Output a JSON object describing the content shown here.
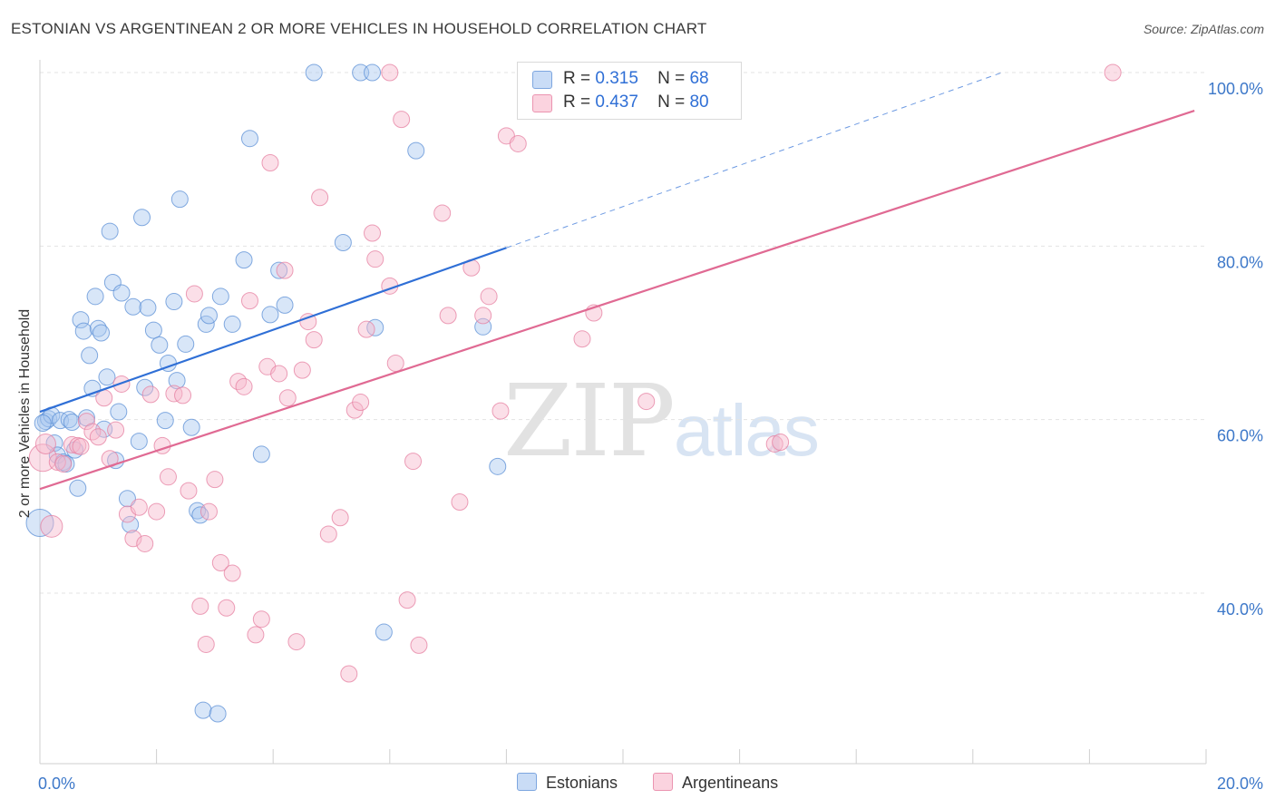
{
  "title": "ESTONIAN VS ARGENTINEAN 2 OR MORE VEHICLES IN HOUSEHOLD CORRELATION CHART",
  "source": "Source: ZipAtlas.com",
  "watermark": {
    "zip": "ZIP",
    "atlas": "atlas"
  },
  "legend_top": {
    "rows": [
      {
        "r_label": "R =",
        "r_value": "0.315",
        "n_label": "N =",
        "n_value": "68",
        "color": "#a8c8f0"
      },
      {
        "r_label": "R =",
        "r_value": "0.437",
        "n_label": "N =",
        "n_value": "80",
        "color": "#f6b8cb"
      }
    ]
  },
  "legend_bottom": [
    {
      "label": "Estonians",
      "color": "#a8c8f0"
    },
    {
      "label": "Argentineans",
      "color": "#f6b8cb"
    }
  ],
  "colors": {
    "estonian_fill": "#a8c8f0",
    "estonian_stroke": "#5b8fd6",
    "estonian_line": "#2f6fd6",
    "argentinean_fill": "#f6b8cb",
    "argentinean_stroke": "#e57fa0",
    "argentinean_line": "#e06a93",
    "tick_label": "#3d78c9",
    "grid": "#e3e3e3"
  },
  "chart_data": {
    "type": "scatter",
    "title": "ESTONIAN VS ARGENTINEAN 2 OR MORE VEHICLES IN HOUSEHOLD CORRELATION CHART",
    "xlabel": "",
    "ylabel": "2 or more Vehicles in Household",
    "xlim": [
      0,
      20
    ],
    "ylim": [
      20,
      102
    ],
    "x_tick_labels": [
      {
        "value": 0,
        "label": "0.0%"
      },
      {
        "value": 20,
        "label": "20.0%"
      }
    ],
    "y_tick_labels": [
      {
        "value": 40,
        "label": "40.0%"
      },
      {
        "value": 60,
        "label": "60.0%"
      },
      {
        "value": 80,
        "label": "80.0%"
      },
      {
        "value": 100,
        "label": "100.0%"
      }
    ],
    "y_grid": [
      40,
      60,
      80,
      100
    ],
    "x_minor_ticks": [
      0,
      2,
      4,
      6,
      8,
      10,
      12,
      14,
      16,
      18,
      20
    ],
    "grid": true,
    "legend_position": "top-center",
    "series": [
      {
        "name": "Estonians",
        "r": 0.315,
        "n": 68,
        "trend": {
          "x0": 0,
          "y0": 60.9,
          "x1": 8,
          "y1": 79.8,
          "dashed_to_x": 16.5,
          "dashed_to_y": 100
        },
        "points": [
          [
            0.0,
            48.1,
            14
          ],
          [
            0.1,
            59.8,
            8
          ],
          [
            0.15,
            60.1,
            8
          ],
          [
            0.2,
            60.5,
            8
          ],
          [
            0.25,
            57.3,
            8
          ],
          [
            0.3,
            55.9,
            8
          ],
          [
            0.35,
            59.9,
            8
          ],
          [
            0.4,
            55.1,
            8
          ],
          [
            0.45,
            54.9,
            8
          ],
          [
            0.5,
            60.0,
            8
          ],
          [
            0.55,
            59.7,
            8
          ],
          [
            0.6,
            56.5,
            8
          ],
          [
            0.65,
            52.1,
            8
          ],
          [
            0.7,
            71.5,
            8
          ],
          [
            0.75,
            70.2,
            8
          ],
          [
            0.8,
            60.2,
            8
          ],
          [
            0.85,
            67.4,
            8
          ],
          [
            0.9,
            63.6,
            8
          ],
          [
            0.95,
            74.2,
            8
          ],
          [
            1.0,
            70.5,
            8
          ],
          [
            1.05,
            70.0,
            8
          ],
          [
            1.1,
            58.9,
            8
          ],
          [
            1.15,
            64.9,
            8
          ],
          [
            1.2,
            81.7,
            8
          ],
          [
            1.25,
            75.8,
            8
          ],
          [
            1.3,
            55.3,
            8
          ],
          [
            1.35,
            60.9,
            8
          ],
          [
            1.4,
            74.6,
            8
          ],
          [
            1.5,
            50.9,
            8
          ],
          [
            1.55,
            47.9,
            8
          ],
          [
            1.6,
            73.0,
            8
          ],
          [
            1.7,
            57.5,
            8
          ],
          [
            1.75,
            83.3,
            8
          ],
          [
            1.8,
            63.7,
            8
          ],
          [
            1.85,
            72.9,
            8
          ],
          [
            1.95,
            70.3,
            8
          ],
          [
            2.05,
            68.6,
            8
          ],
          [
            2.15,
            59.9,
            8
          ],
          [
            2.2,
            66.5,
            8
          ],
          [
            2.3,
            73.6,
            8
          ],
          [
            2.35,
            64.5,
            8
          ],
          [
            2.4,
            85.4,
            8
          ],
          [
            2.5,
            68.7,
            8
          ],
          [
            2.6,
            59.1,
            8
          ],
          [
            2.7,
            49.5,
            8
          ],
          [
            2.75,
            49.0,
            8
          ],
          [
            2.8,
            26.5,
            8
          ],
          [
            2.85,
            71.0,
            8
          ],
          [
            2.9,
            72.0,
            8
          ],
          [
            3.05,
            26.1,
            8
          ],
          [
            3.1,
            74.2,
            8
          ],
          [
            3.3,
            71.0,
            8
          ],
          [
            3.5,
            78.4,
            8
          ],
          [
            3.6,
            92.4,
            8
          ],
          [
            3.8,
            56.0,
            8
          ],
          [
            3.95,
            72.1,
            8
          ],
          [
            4.1,
            77.2,
            8
          ],
          [
            4.2,
            73.2,
            8
          ],
          [
            4.7,
            100.0,
            8
          ],
          [
            5.2,
            80.4,
            8
          ],
          [
            5.5,
            100.0,
            8
          ],
          [
            5.7,
            100.0,
            8
          ],
          [
            5.75,
            70.6,
            8
          ],
          [
            5.9,
            35.5,
            8
          ],
          [
            6.45,
            91.0,
            8
          ],
          [
            7.6,
            70.7,
            8
          ],
          [
            7.85,
            54.6,
            8
          ],
          [
            0.05,
            59.6,
            8
          ]
        ]
      },
      {
        "name": "Argentineans",
        "r": 0.437,
        "n": 80,
        "trend": {
          "x0": 0,
          "y0": 52.0,
          "x1": 19.8,
          "y1": 95.6
        },
        "points": [
          [
            0.05,
            55.6,
            14
          ],
          [
            0.1,
            57.2,
            10
          ],
          [
            0.2,
            47.7,
            11
          ],
          [
            0.3,
            55.1,
            8
          ],
          [
            0.4,
            54.9,
            8
          ],
          [
            0.55,
            57.1,
            8
          ],
          [
            0.65,
            57.0,
            8
          ],
          [
            0.7,
            56.9,
            8
          ],
          [
            0.8,
            59.8,
            8
          ],
          [
            0.9,
            58.6,
            8
          ],
          [
            1.0,
            58.0,
            8
          ],
          [
            1.1,
            62.5,
            8
          ],
          [
            1.2,
            55.5,
            8
          ],
          [
            1.3,
            58.8,
            8
          ],
          [
            1.4,
            64.1,
            8
          ],
          [
            1.5,
            49.1,
            8
          ],
          [
            1.6,
            46.3,
            8
          ],
          [
            1.7,
            49.9,
            8
          ],
          [
            1.8,
            45.7,
            8
          ],
          [
            1.9,
            62.9,
            8
          ],
          [
            2.0,
            49.4,
            8
          ],
          [
            2.1,
            57.0,
            8
          ],
          [
            2.2,
            53.4,
            8
          ],
          [
            2.3,
            63.0,
            8
          ],
          [
            2.45,
            62.8,
            8
          ],
          [
            2.55,
            51.8,
            8
          ],
          [
            2.65,
            74.5,
            8
          ],
          [
            2.75,
            38.5,
            8
          ],
          [
            2.85,
            34.1,
            8
          ],
          [
            2.9,
            49.4,
            8
          ],
          [
            3.0,
            53.1,
            8
          ],
          [
            3.1,
            43.5,
            8
          ],
          [
            3.2,
            38.3,
            8
          ],
          [
            3.3,
            42.3,
            8
          ],
          [
            3.4,
            64.4,
            8
          ],
          [
            3.5,
            63.8,
            8
          ],
          [
            3.6,
            73.7,
            8
          ],
          [
            3.7,
            35.2,
            8
          ],
          [
            3.8,
            37.0,
            8
          ],
          [
            3.9,
            66.1,
            8
          ],
          [
            3.95,
            89.6,
            8
          ],
          [
            4.1,
            65.3,
            8
          ],
          [
            4.2,
            77.2,
            8
          ],
          [
            4.25,
            62.5,
            8
          ],
          [
            4.4,
            34.4,
            8
          ],
          [
            4.5,
            65.7,
            8
          ],
          [
            4.6,
            71.3,
            8
          ],
          [
            4.7,
            69.2,
            8
          ],
          [
            4.8,
            85.6,
            8
          ],
          [
            4.95,
            46.8,
            8
          ],
          [
            5.15,
            48.7,
            8
          ],
          [
            5.3,
            30.7,
            8
          ],
          [
            5.4,
            61.1,
            8
          ],
          [
            5.5,
            62.0,
            8
          ],
          [
            5.6,
            70.4,
            8
          ],
          [
            5.7,
            81.5,
            8
          ],
          [
            5.75,
            78.5,
            8
          ],
          [
            6.0,
            75.4,
            8
          ],
          [
            6.1,
            66.5,
            8
          ],
          [
            6.2,
            94.6,
            8
          ],
          [
            6.3,
            39.2,
            8
          ],
          [
            6.4,
            55.2,
            8
          ],
          [
            6.5,
            34.0,
            8
          ],
          [
            6.9,
            83.8,
            8
          ],
          [
            7.0,
            72.0,
            8
          ],
          [
            7.2,
            50.5,
            8
          ],
          [
            7.4,
            77.5,
            8
          ],
          [
            7.6,
            72.0,
            8
          ],
          [
            7.7,
            74.2,
            8
          ],
          [
            7.9,
            61.0,
            8
          ],
          [
            8.0,
            92.7,
            8
          ],
          [
            8.2,
            91.8,
            8
          ],
          [
            9.3,
            69.3,
            8
          ],
          [
            9.5,
            72.3,
            8
          ],
          [
            10.4,
            62.1,
            8
          ],
          [
            12.6,
            57.2,
            8
          ],
          [
            12.7,
            57.4,
            8
          ],
          [
            18.4,
            100.0,
            8
          ],
          [
            3.0,
            100.0,
            0
          ],
          [
            6.0,
            100.0,
            8
          ]
        ]
      }
    ]
  }
}
